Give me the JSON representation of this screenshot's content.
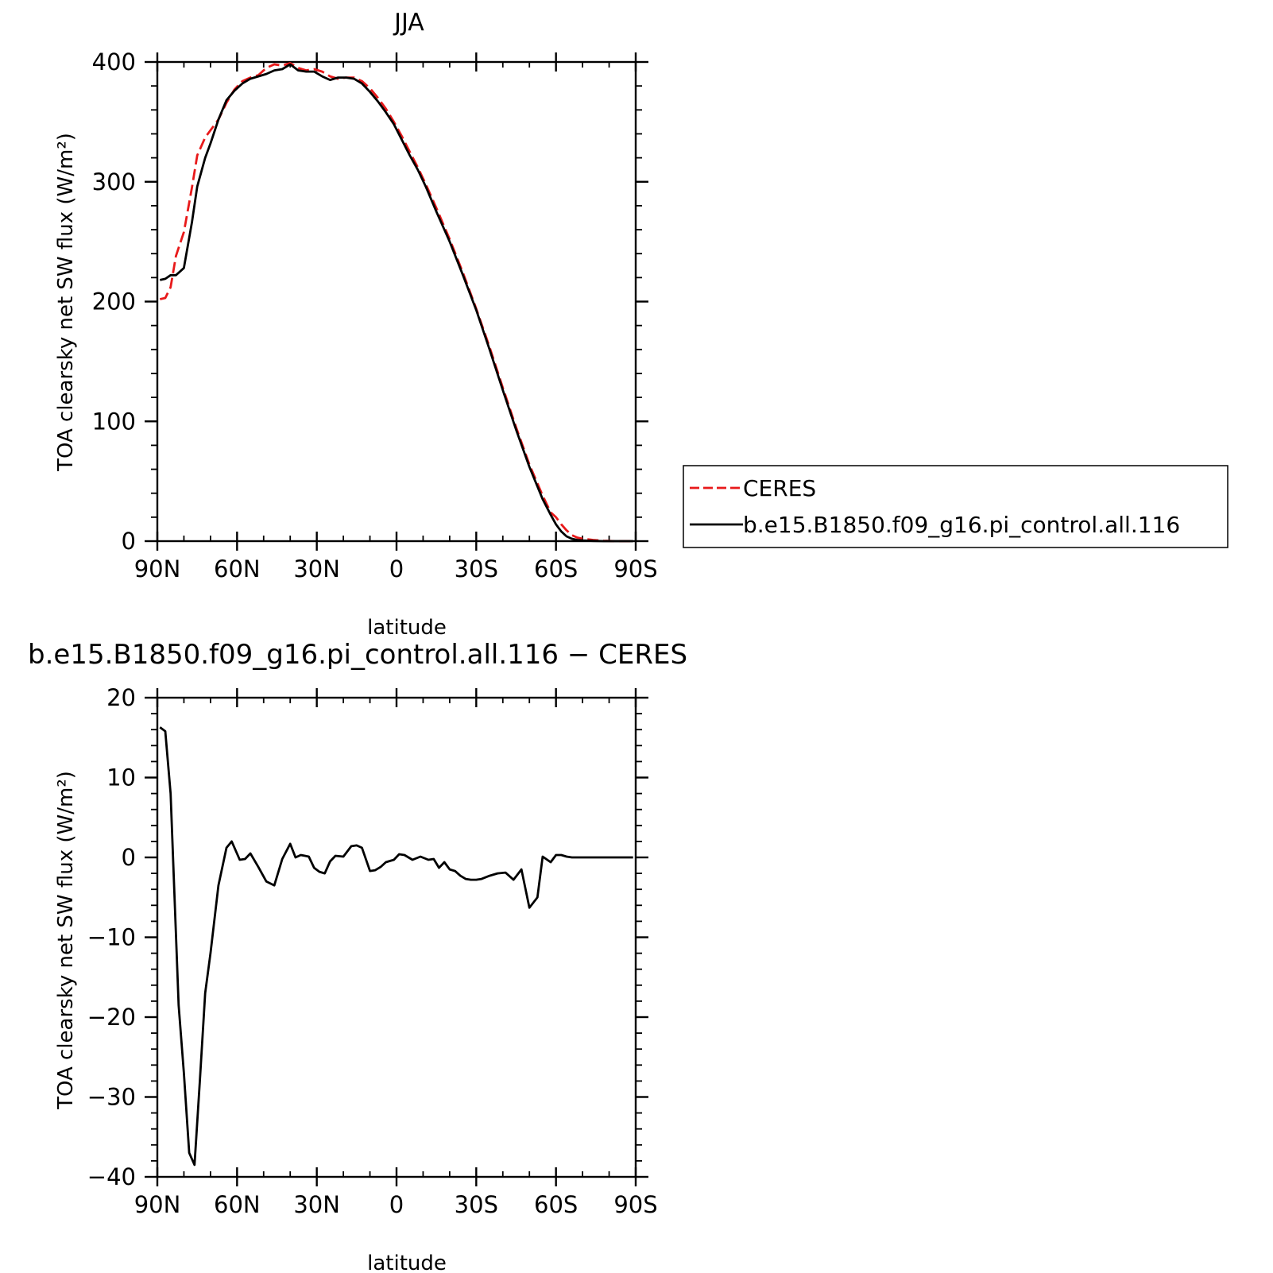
{
  "figure": {
    "top_title": "JJA",
    "bottom_title": "b.e15.B1850.f09_g16.pi_control.all.116 − CERES"
  },
  "chart_data": [
    {
      "type": "line",
      "title": "JJA",
      "xlabel": "latitude",
      "ylabel": "TOA clearsky net SW flux (W/m²)",
      "xlim": [
        90,
        -90
      ],
      "ylim": [
        0,
        400
      ],
      "xticks": [
        90,
        60,
        30,
        0,
        -30,
        -60,
        -90
      ],
      "xtick_labels": [
        "90N",
        "60N",
        "30N",
        "0",
        "30S",
        "60S",
        "90S"
      ],
      "yticks": [
        0,
        100,
        200,
        300,
        400
      ],
      "ytick_labels": [
        "0",
        "100",
        "200",
        "300",
        "400"
      ],
      "grid": false,
      "legend_position": "right, outside plot",
      "series": [
        {
          "name": "CERES",
          "color": "#e8191a",
          "dash": "dashed",
          "x": [
            89,
            87,
            85,
            83,
            80,
            77,
            75,
            72,
            70,
            67,
            64,
            61,
            58,
            55,
            52,
            49,
            46,
            43,
            40,
            37,
            34,
            31,
            28,
            25,
            22,
            19,
            16,
            13,
            10,
            7,
            4,
            1,
            -2,
            -5,
            -8,
            -11,
            -15,
            -20,
            -25,
            -30,
            -35,
            -40,
            -45,
            -50,
            -55,
            -58,
            -60,
            -62,
            -64,
            -66,
            -68,
            -70,
            -74,
            -78,
            -82,
            -86,
            -89
          ],
          "values": [
            202,
            203,
            212,
            238,
            258,
            295,
            322,
            337,
            343,
            352,
            366,
            377,
            384,
            387,
            389,
            395,
            398,
            397,
            399,
            395,
            393,
            394,
            392,
            388,
            386,
            387,
            387,
            384,
            378,
            370,
            361,
            350,
            338,
            325,
            312,
            298,
            278,
            252,
            224,
            194,
            162,
            128,
            95,
            64,
            38,
            24,
            20,
            14,
            9,
            5,
            3,
            2,
            1,
            0.3,
            0,
            0,
            0
          ]
        },
        {
          "name": "b.e15.B1850.f09_g16.pi_control.all.116",
          "color": "#000000",
          "dash": "solid",
          "x": [
            89,
            87,
            85,
            83,
            80,
            77,
            75,
            72,
            70,
            67,
            64,
            61,
            58,
            55,
            52,
            49,
            46,
            43,
            40,
            37,
            34,
            31,
            28,
            25,
            22,
            19,
            16,
            13,
            10,
            7,
            4,
            1,
            -2,
            -5,
            -8,
            -11,
            -15,
            -20,
            -25,
            -30,
            -35,
            -40,
            -45,
            -50,
            -55,
            -58,
            -60,
            -62,
            -64,
            -66,
            -68,
            -70,
            -74,
            -78,
            -82,
            -86,
            -89
          ],
          "values": [
            218,
            219,
            222,
            222,
            228,
            266,
            296,
            320,
            332,
            352,
            368,
            376,
            382,
            386,
            388,
            390,
            393,
            394,
            398,
            393,
            392,
            392,
            388,
            385,
            387,
            387,
            386,
            382,
            375,
            367,
            358,
            348,
            335,
            322,
            310,
            296,
            275,
            250,
            222,
            193,
            160,
            126,
            93,
            62,
            35,
            22,
            14,
            8,
            4,
            2,
            1,
            0.5,
            0.2,
            0,
            0,
            0,
            0
          ]
        }
      ]
    },
    {
      "type": "line",
      "title": "b.e15.B1850.f09_g16.pi_control.all.116 − CERES",
      "xlabel": "latitude",
      "ylabel": "TOA clearsky net SW flux (W/m²)",
      "xlim": [
        90,
        -90
      ],
      "ylim": [
        -40,
        20
      ],
      "xticks": [
        90,
        60,
        30,
        0,
        -30,
        -60,
        -90
      ],
      "xtick_labels": [
        "90N",
        "60N",
        "30N",
        "0",
        "30S",
        "60S",
        "90S"
      ],
      "yticks": [
        -40,
        -30,
        -20,
        -10,
        0,
        10,
        20
      ],
      "ytick_labels": [
        "−40",
        "−30",
        "−20",
        "−10",
        "0",
        "10",
        "20"
      ],
      "grid": false,
      "series": [
        {
          "color": "#000000",
          "dash": "solid",
          "x": [
            89,
            87,
            85,
            82,
            80,
            78,
            76,
            74,
            72,
            70,
            67,
            64,
            62,
            59,
            57,
            55,
            52,
            49,
            46,
            43,
            40,
            38,
            36,
            33,
            31,
            29,
            27,
            25,
            23,
            20,
            17,
            15,
            13,
            10,
            8,
            6,
            4,
            1,
            -1,
            -3,
            -6,
            -9,
            -12,
            -14,
            -16,
            -18,
            -20,
            -22,
            -24,
            -26,
            -28,
            -30,
            -32,
            -35,
            -38,
            -41,
            -44,
            -47,
            -50,
            -53,
            -55,
            -58,
            -60,
            -62,
            -64,
            -66,
            -68,
            -70,
            -72,
            -74,
            -77,
            -80,
            -83,
            -86,
            -89
          ],
          "values": [
            16.3,
            15.8,
            8,
            -18.5,
            -27,
            -37,
            -38.5,
            -28,
            -17,
            -12,
            -3.5,
            1.2,
            2,
            -0.3,
            -0.2,
            0.5,
            -1.2,
            -3,
            -3.5,
            -0.2,
            1.7,
            0,
            0.3,
            0.1,
            -1.3,
            -1.8,
            -2,
            -0.5,
            0.2,
            0.1,
            1.4,
            1.5,
            1.2,
            -1.7,
            -1.6,
            -1.2,
            -0.6,
            -0.3,
            0.4,
            0.3,
            -0.3,
            0.1,
            -0.3,
            -0.2,
            -1.3,
            -0.6,
            -1.5,
            -1.7,
            -2.3,
            -2.7,
            -2.8,
            -2.8,
            -2.7,
            -2.3,
            -2,
            -1.9,
            -2.8,
            -1.5,
            -6.3,
            -5,
            0.1,
            -0.6,
            0.3,
            0.3,
            0.1,
            0,
            0,
            0,
            0,
            0,
            0,
            0,
            0,
            0,
            0
          ]
        }
      ]
    }
  ]
}
